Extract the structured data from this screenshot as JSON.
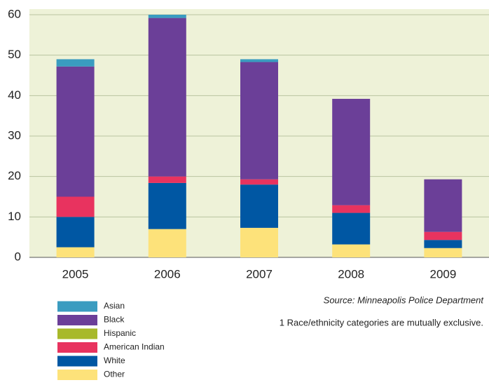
{
  "chart_data": {
    "type": "stacked_bar",
    "categories": [
      "2005",
      "2006",
      "2007",
      "2008",
      "2009"
    ],
    "series": [
      {
        "name": "Asian",
        "color": "#3a9cc0",
        "values": [
          1.8,
          0.8,
          0.7,
          0,
          0
        ]
      },
      {
        "name": "Black",
        "color": "#6b3f98",
        "values": [
          32.2,
          39.2,
          29,
          26.3,
          13
        ]
      },
      {
        "name": "Hispanic",
        "color": "#a8b92a",
        "values": [
          0,
          0,
          0,
          0,
          0
        ]
      },
      {
        "name": "American Indian",
        "color": "#e8335f",
        "values": [
          5,
          1.6,
          1.3,
          1.9,
          2
        ]
      },
      {
        "name": "White",
        "color": "#0057a3",
        "values": [
          7.5,
          11.4,
          10.7,
          7.8,
          2
        ]
      },
      {
        "name": "Other",
        "color": "#fde27a",
        "values": [
          2.5,
          7,
          7.3,
          3.2,
          2.3
        ]
      }
    ],
    "ylim": [
      0,
      60
    ],
    "yticks": [
      0,
      10,
      20,
      30,
      40,
      50,
      60
    ],
    "grid": true,
    "source": "Source: Minneapolis Police Department",
    "footnote": "1 Race/ethnicity categories are mutually exclusive."
  }
}
